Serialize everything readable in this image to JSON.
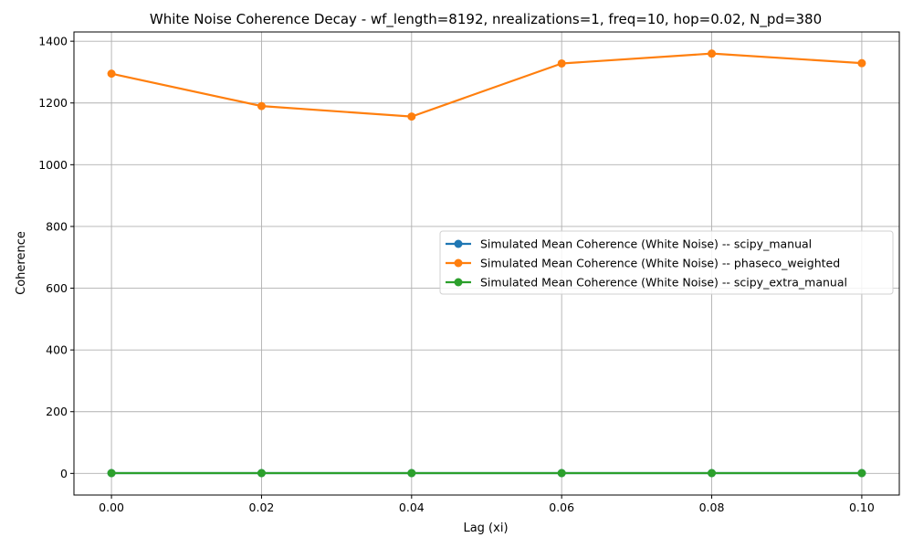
{
  "chart_data": {
    "type": "line",
    "title": "White Noise Coherence Decay - wf_length=8192, nrealizations=1, freq=10, hop=0.02, N_pd=380",
    "xlabel": "Lag (xi)",
    "ylabel": "Coherence",
    "xlim": [
      -0.005,
      0.105
    ],
    "ylim": [
      -70,
      1430
    ],
    "x": [
      0.0,
      0.02,
      0.04,
      0.06,
      0.08,
      0.1
    ],
    "x_ticks": [
      "0.00",
      "0.02",
      "0.04",
      "0.06",
      "0.08",
      "0.10"
    ],
    "y_ticks": [
      "0",
      "200",
      "400",
      "600",
      "800",
      "1000",
      "1200",
      "1400"
    ],
    "grid": true,
    "legend_position": "center-right",
    "series": [
      {
        "name": "Simulated Mean Coherence (White Noise) -- scipy_manual",
        "color": "#1f77b4",
        "values": [
          1,
          1,
          1,
          1,
          1,
          1
        ]
      },
      {
        "name": "Simulated Mean Coherence (White Noise) -- phaseco_weighted",
        "color": "#ff7f0e",
        "values": [
          1295,
          1190,
          1156,
          1328,
          1360,
          1329
        ]
      },
      {
        "name": "Simulated Mean Coherence (White Noise) -- scipy_extra_manual",
        "color": "#2ca02c",
        "values": [
          1,
          1,
          1,
          1,
          1,
          1
        ]
      }
    ]
  }
}
